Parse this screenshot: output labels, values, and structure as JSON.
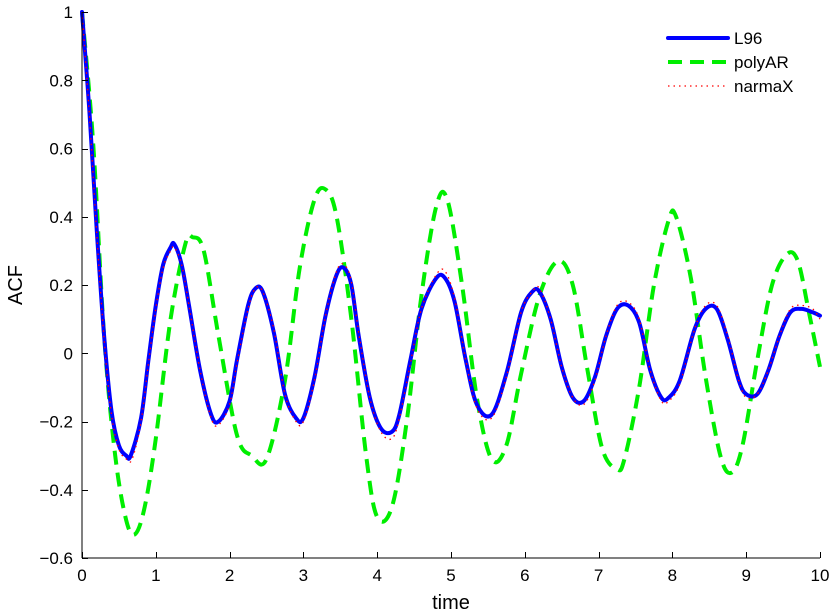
{
  "chart_data": {
    "type": "line",
    "title": "",
    "xlabel": "time",
    "ylabel": "ACF",
    "xlim": [
      0,
      10
    ],
    "ylim": [
      -0.6,
      1
    ],
    "xticks": [
      0,
      1,
      2,
      3,
      4,
      5,
      6,
      7,
      8,
      9,
      10
    ],
    "xtick_labels": [
      "0",
      "1",
      "2",
      "3",
      "4",
      "5",
      "6",
      "7",
      "8",
      "9",
      "10"
    ],
    "yticks": [
      -0.6,
      -0.4,
      -0.2,
      0,
      0.2,
      0.4,
      0.6,
      0.8,
      1
    ],
    "ytick_labels": [
      "−0.6",
      "−0.4",
      "−0.2",
      "0",
      "0.2",
      "0.4",
      "0.6",
      "0.8",
      "1"
    ],
    "grid": false,
    "legend_position": "top-right",
    "series": [
      {
        "name": "L96",
        "style": "solid",
        "color": "#0000ff",
        "x": [
          0,
          0.1,
          0.2,
          0.3,
          0.4,
          0.5,
          0.6,
          0.66,
          0.8,
          0.9,
          1.0,
          1.1,
          1.2,
          1.25,
          1.35,
          1.45,
          1.6,
          1.75,
          1.85,
          2.0,
          2.1,
          2.25,
          2.35,
          2.45,
          2.6,
          2.75,
          2.9,
          3.0,
          3.15,
          3.3,
          3.45,
          3.55,
          3.65,
          3.75,
          3.9,
          4.05,
          4.2,
          4.3,
          4.45,
          4.6,
          4.8,
          4.92,
          5.05,
          5.2,
          5.35,
          5.55,
          5.75,
          5.95,
          6.1,
          6.2,
          6.35,
          6.5,
          6.65,
          6.8,
          6.95,
          7.1,
          7.25,
          7.4,
          7.55,
          7.7,
          7.85,
          7.95,
          8.1,
          8.3,
          8.45,
          8.6,
          8.75,
          8.9,
          9.0,
          9.15,
          9.3,
          9.45,
          9.6,
          9.75,
          9.9,
          10.0
        ],
        "y": [
          1.0,
          0.71,
          0.36,
          0.05,
          -0.17,
          -0.27,
          -0.3,
          -0.3,
          -0.19,
          -0.02,
          0.14,
          0.26,
          0.31,
          0.32,
          0.26,
          0.14,
          -0.05,
          -0.18,
          -0.2,
          -0.14,
          -0.02,
          0.14,
          0.19,
          0.18,
          0.06,
          -0.12,
          -0.19,
          -0.19,
          -0.07,
          0.11,
          0.23,
          0.25,
          0.2,
          0.05,
          -0.13,
          -0.22,
          -0.23,
          -0.18,
          -0.02,
          0.13,
          0.22,
          0.22,
          0.15,
          -0.02,
          -0.15,
          -0.18,
          -0.06,
          0.12,
          0.18,
          0.18,
          0.1,
          -0.04,
          -0.13,
          -0.14,
          -0.07,
          0.05,
          0.13,
          0.14,
          0.09,
          -0.05,
          -0.13,
          -0.13,
          -0.08,
          0.07,
          0.13,
          0.13,
          0.04,
          -0.08,
          -0.12,
          -0.12,
          -0.05,
          0.05,
          0.12,
          0.13,
          0.12,
          0.11
        ]
      },
      {
        "name": "polyAR",
        "style": "dashed",
        "color": "#00ee00",
        "x": [
          0,
          0.15,
          0.3,
          0.45,
          0.6,
          0.72,
          0.85,
          1.0,
          1.2,
          1.4,
          1.5,
          1.65,
          1.85,
          2.1,
          2.3,
          2.5,
          2.75,
          2.95,
          3.15,
          3.3,
          3.45,
          3.65,
          3.85,
          4.0,
          4.2,
          4.4,
          4.6,
          4.8,
          4.95,
          5.15,
          5.35,
          5.55,
          5.75,
          5.95,
          6.2,
          6.45,
          6.65,
          6.85,
          7.05,
          7.25,
          7.35,
          7.55,
          7.75,
          7.95,
          8.05,
          8.25,
          8.45,
          8.65,
          8.8,
          8.95,
          9.15,
          9.35,
          9.55,
          9.7,
          9.85,
          10.0
        ],
        "y": [
          1.0,
          0.62,
          0.05,
          -0.3,
          -0.49,
          -0.53,
          -0.45,
          -0.25,
          0.1,
          0.32,
          0.34,
          0.3,
          0.05,
          -0.24,
          -0.3,
          -0.31,
          -0.08,
          0.25,
          0.45,
          0.48,
          0.4,
          0.1,
          -0.3,
          -0.48,
          -0.45,
          -0.2,
          0.17,
          0.43,
          0.45,
          0.2,
          -0.13,
          -0.31,
          -0.27,
          -0.06,
          0.17,
          0.27,
          0.2,
          -0.05,
          -0.28,
          -0.34,
          -0.31,
          -0.1,
          0.2,
          0.39,
          0.4,
          0.22,
          -0.07,
          -0.3,
          -0.35,
          -0.27,
          -0.02,
          0.2,
          0.29,
          0.27,
          0.12,
          -0.04
        ]
      },
      {
        "name": "narmaX",
        "style": "dotted",
        "color": "#ff0000",
        "x": [
          0,
          0.1,
          0.2,
          0.3,
          0.4,
          0.5,
          0.6,
          0.68,
          0.8,
          0.9,
          1.0,
          1.1,
          1.2,
          1.25,
          1.35,
          1.45,
          1.6,
          1.75,
          1.85,
          2.0,
          2.1,
          2.25,
          2.35,
          2.45,
          2.6,
          2.75,
          2.9,
          3.0,
          3.15,
          3.3,
          3.45,
          3.55,
          3.65,
          3.75,
          3.9,
          4.05,
          4.2,
          4.3,
          4.45,
          4.6,
          4.8,
          4.92,
          5.05,
          5.2,
          5.35,
          5.55,
          5.75,
          5.95,
          6.1,
          6.2,
          6.35,
          6.5,
          6.65,
          6.8,
          6.95,
          7.1,
          7.25,
          7.4,
          7.55,
          7.7,
          7.85,
          7.95,
          8.1,
          8.3,
          8.45,
          8.6,
          8.75,
          8.9,
          9.0,
          9.15,
          9.3,
          9.45,
          9.6,
          9.75,
          9.9,
          10.0
        ],
        "y": [
          1.0,
          0.7,
          0.35,
          0.04,
          -0.18,
          -0.28,
          -0.31,
          -0.31,
          -0.2,
          -0.03,
          0.13,
          0.25,
          0.3,
          0.31,
          0.26,
          0.14,
          -0.05,
          -0.19,
          -0.21,
          -0.15,
          -0.03,
          0.13,
          0.19,
          0.18,
          0.07,
          -0.12,
          -0.2,
          -0.2,
          -0.08,
          0.11,
          0.24,
          0.26,
          0.21,
          0.06,
          -0.13,
          -0.23,
          -0.25,
          -0.19,
          -0.03,
          0.13,
          0.23,
          0.24,
          0.16,
          -0.02,
          -0.16,
          -0.19,
          -0.07,
          0.12,
          0.18,
          0.19,
          0.1,
          -0.04,
          -0.13,
          -0.15,
          -0.08,
          0.05,
          0.14,
          0.15,
          0.1,
          -0.05,
          -0.14,
          -0.14,
          -0.09,
          0.07,
          0.14,
          0.14,
          0.05,
          -0.08,
          -0.13,
          -0.12,
          -0.05,
          0.05,
          0.13,
          0.14,
          0.13,
          0.1
        ]
      }
    ]
  }
}
